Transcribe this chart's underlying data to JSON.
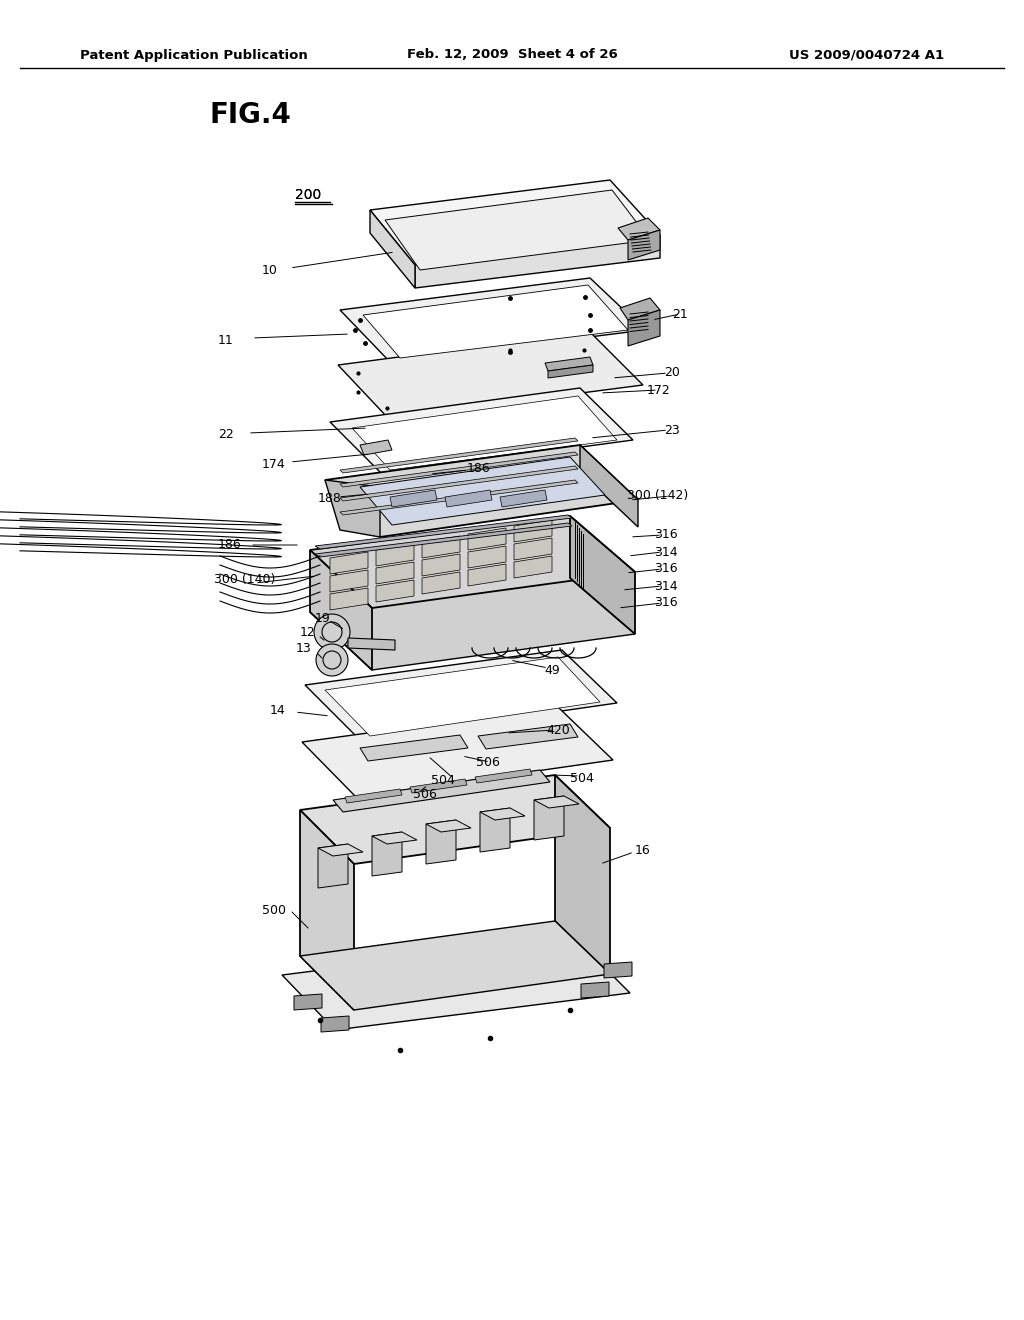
{
  "bg_color": "#ffffff",
  "header_left": "Patent Application Publication",
  "header_center": "Feb. 12, 2009  Sheet 4 of 26",
  "header_right": "US 2009/0040724 A1",
  "fig_label": "FIG.4"
}
